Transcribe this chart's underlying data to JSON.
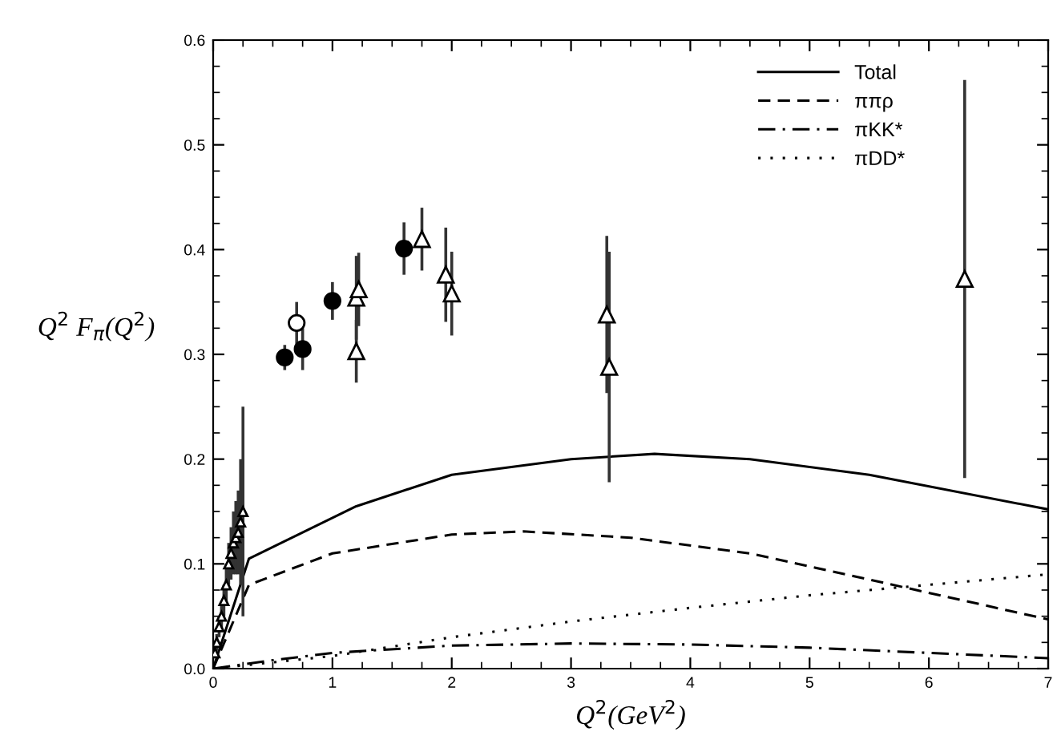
{
  "chart_data": {
    "type": "line",
    "xlabel": "Q$^{2}$(GeV$^{2}$)",
    "ylabel": "Q$^{2}$ F$_{π}$(Q$^{2}$)",
    "xlim": [
      0,
      7
    ],
    "xticks": [
      0,
      1,
      2,
      3,
      4,
      5,
      6,
      7
    ],
    "ylim": [
      0,
      0.6
    ],
    "yticks": [
      {
        "value": 0,
        "label": "0.0"
      },
      0.1,
      0.2,
      0.3,
      0.4,
      0.5,
      0.6
    ],
    "grid": false,
    "legend": "top right",
    "series": [
      {
        "name": "Total",
        "color": "#000000",
        "line_style": "solid",
        "x": [
          0,
          0.3,
          1.2,
          2,
          3,
          3.7,
          4.5,
          5.5,
          7
        ],
        "values": [
          0,
          0.105,
          0.155,
          0.185,
          0.2,
          0.205,
          0.2,
          0.185,
          0.152
        ]
      },
      {
        "name": "ππρ",
        "color": "#000000",
        "line_style": "dashed",
        "x": [
          0,
          0.3,
          1,
          2,
          2.6,
          3.5,
          4.5,
          5.5,
          7
        ],
        "values": [
          0,
          0.08,
          0.11,
          0.128,
          0.131,
          0.125,
          0.11,
          0.085,
          0.047
        ]
      },
      {
        "name": "πKK*",
        "color": "#000000",
        "line_style": "dashdot",
        "x": [
          0,
          0.5,
          1,
          2,
          3,
          4,
          5,
          6,
          7
        ],
        "values": [
          0,
          0.008,
          0.015,
          0.022,
          0.024,
          0.023,
          0.02,
          0.015,
          0.01
        ]
      },
      {
        "name": "πDD*",
        "color": "#000000",
        "line_style": "dotted",
        "x": [
          0,
          1,
          2,
          3,
          4,
          5,
          6,
          7
        ],
        "values": [
          0,
          0.012,
          0.03,
          0.045,
          0.058,
          0.07,
          0.08,
          0.09
        ]
      },
      {
        "type": "scatter",
        "color": "#000000",
        "marker": "circle",
        "x": [
          0.6,
          0.75,
          1.0,
          1.6
        ],
        "values": [
          0.297,
          0.305,
          0.351,
          0.401
        ],
        "errors": [
          0.012,
          0.02,
          0.018,
          0.025
        ]
      },
      {
        "type": "scatter",
        "color": "#ffffff",
        "marker": "circle",
        "x": [
          0.7
        ],
        "values": [
          0.33
        ],
        "errors": [
          0.02
        ]
      },
      {
        "type": "scatter",
        "color": "#ffffff",
        "marker": "triangle",
        "x": [
          1.2,
          1.2,
          1.22,
          1.75,
          1.95,
          2.0,
          3.3,
          3.32,
          6.3
        ],
        "values": [
          0.303,
          0.354,
          0.362,
          0.41,
          0.376,
          0.358,
          0.338,
          0.288,
          0.372
        ],
        "errors": [
          0.03,
          0.04,
          0.035,
          0.03,
          0.045,
          0.04,
          0.075,
          0.11,
          0.19
        ]
      },
      {
        "type": "scatter",
        "color": "#ffffff",
        "marker": "triangle",
        "x": [
          0.015,
          0.03,
          0.05,
          0.07,
          0.09,
          0.11,
          0.13,
          0.15,
          0.17,
          0.19,
          0.21,
          0.23,
          0.25
        ],
        "values": [
          0.015,
          0.025,
          0.04,
          0.05,
          0.065,
          0.08,
          0.1,
          0.11,
          0.12,
          0.125,
          0.13,
          0.14,
          0.15
        ],
        "errors": [
          0.005,
          0.008,
          0.01,
          0.012,
          0.015,
          0.02,
          0.02,
          0.025,
          0.03,
          0.035,
          0.04,
          0.06,
          0.1
        ]
      }
    ]
  }
}
